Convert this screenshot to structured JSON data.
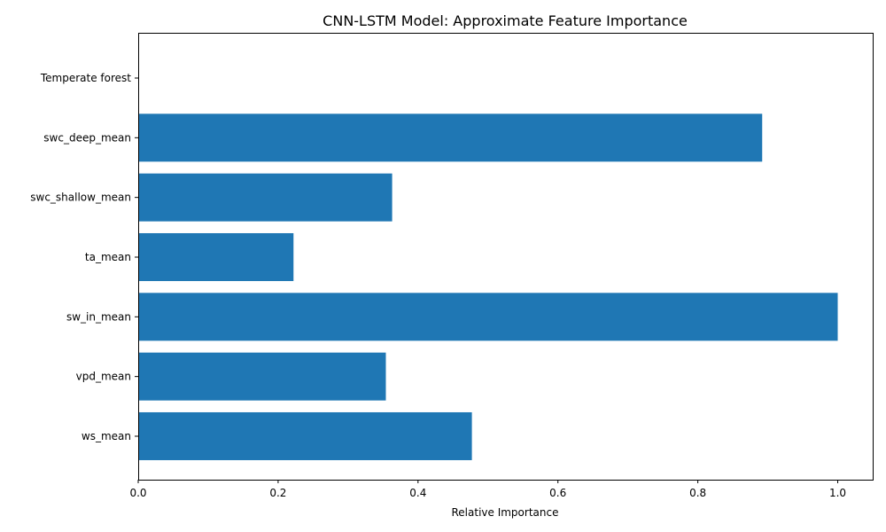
{
  "chart_data": {
    "type": "bar",
    "orientation": "horizontal",
    "title": "CNN-LSTM Model: Approximate Feature Importance",
    "xlabel": "Relative Importance",
    "ylabel": "",
    "categories": [
      "Temperate forest",
      "swc_deep_mean",
      "swc_shallow_mean",
      "ta_mean",
      "sw_in_mean",
      "vpd_mean",
      "ws_mean"
    ],
    "values": [
      0.0,
      0.892,
      0.363,
      0.222,
      1.0,
      0.354,
      0.477
    ],
    "xlim": [
      0,
      1.05
    ],
    "xticks": [
      "0.0",
      "0.2",
      "0.4",
      "0.6",
      "0.8",
      "1.0"
    ],
    "grid": false,
    "bar_color": "#1f77b4"
  }
}
